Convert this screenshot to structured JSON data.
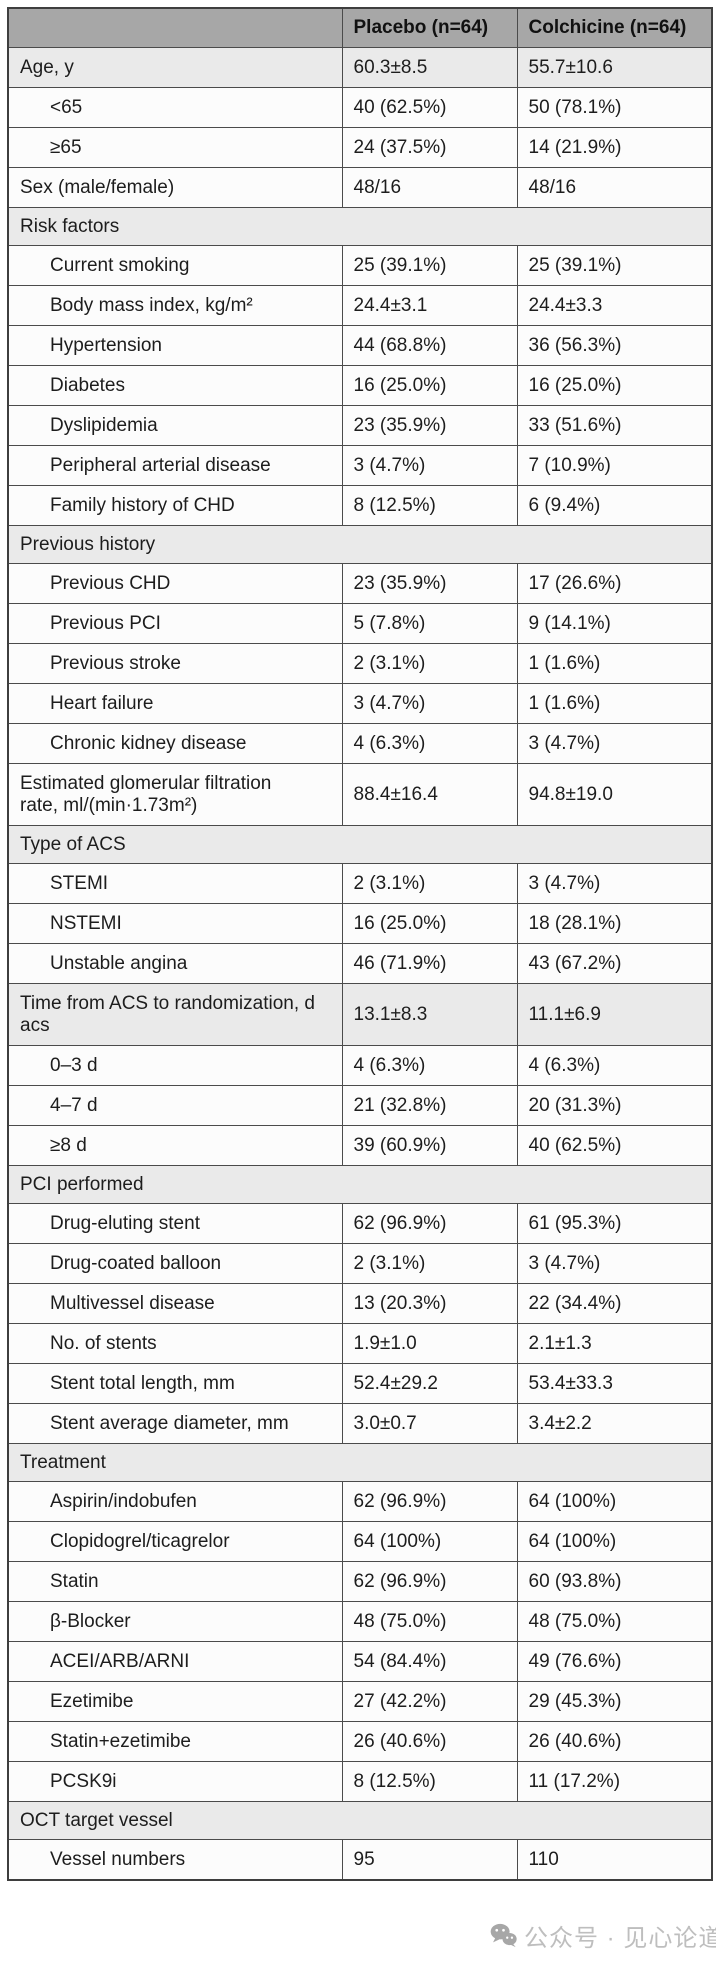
{
  "header": {
    "columns": [
      "",
      "Placebo (n=64)",
      "Colchicine (n=64)"
    ]
  },
  "table": {
    "rows": [
      {
        "type": "data",
        "shade": true,
        "indent": false,
        "label": "Age, y",
        "placebo": "60.3±8.5",
        "colchicine": "55.7±10.6"
      },
      {
        "type": "data",
        "shade": false,
        "indent": true,
        "label": "<65",
        "placebo": "40 (62.5%)",
        "colchicine": "50 (78.1%)"
      },
      {
        "type": "data",
        "shade": false,
        "indent": true,
        "label": "≥65",
        "placebo": "24 (37.5%)",
        "colchicine": "14 (21.9%)"
      },
      {
        "type": "data",
        "shade": false,
        "indent": false,
        "label": "Sex (male/female)",
        "placebo": "48/16",
        "colchicine": "48/16"
      },
      {
        "type": "section",
        "label": "Risk factors"
      },
      {
        "type": "data",
        "shade": false,
        "indent": true,
        "label": "Current smoking",
        "placebo": "25 (39.1%)",
        "colchicine": "25 (39.1%)"
      },
      {
        "type": "data",
        "shade": false,
        "indent": true,
        "label": "Body mass index, kg/m²",
        "placebo": "24.4±3.1",
        "colchicine": "24.4±3.3"
      },
      {
        "type": "data",
        "shade": false,
        "indent": true,
        "label": "Hypertension",
        "placebo": "44 (68.8%)",
        "colchicine": "36 (56.3%)"
      },
      {
        "type": "data",
        "shade": false,
        "indent": true,
        "label": "Diabetes",
        "placebo": "16 (25.0%)",
        "colchicine": "16 (25.0%)"
      },
      {
        "type": "data",
        "shade": false,
        "indent": true,
        "label": "Dyslipidemia",
        "placebo": "23 (35.9%)",
        "colchicine": "33 (51.6%)"
      },
      {
        "type": "data",
        "shade": false,
        "indent": true,
        "label": "Peripheral arterial disease",
        "placebo": "3 (4.7%)",
        "colchicine": "7 (10.9%)"
      },
      {
        "type": "data",
        "shade": false,
        "indent": true,
        "label": "Family history of CHD",
        "placebo": "8 (12.5%)",
        "colchicine": "6 (9.4%)"
      },
      {
        "type": "section",
        "label": "Previous history"
      },
      {
        "type": "data",
        "shade": false,
        "indent": true,
        "label": "Previous CHD",
        "placebo": "23 (35.9%)",
        "colchicine": "17 (26.6%)"
      },
      {
        "type": "data",
        "shade": false,
        "indent": true,
        "label": "Previous PCI",
        "placebo": "5 (7.8%)",
        "colchicine": "9 (14.1%)"
      },
      {
        "type": "data",
        "shade": false,
        "indent": true,
        "label": "Previous stroke",
        "placebo": "2 (3.1%)",
        "colchicine": "1 (1.6%)"
      },
      {
        "type": "data",
        "shade": false,
        "indent": true,
        "label": "Heart failure",
        "placebo": "3 (4.7%)",
        "colchicine": "1 (1.6%)"
      },
      {
        "type": "data",
        "shade": false,
        "indent": true,
        "label": "Chronic kidney disease",
        "placebo": "4 (6.3%)",
        "colchicine": "3 (4.7%)"
      },
      {
        "type": "data",
        "shade": false,
        "indent": false,
        "label": "Estimated glomerular filtration\nrate, ml/(min·1.73m²)",
        "placebo": "88.4±16.4",
        "colchicine": "94.8±19.0"
      },
      {
        "type": "section",
        "label": "Type of ACS"
      },
      {
        "type": "data",
        "shade": false,
        "indent": true,
        "label": "STEMI",
        "placebo": "2 (3.1%)",
        "colchicine": "3 (4.7%)"
      },
      {
        "type": "data",
        "shade": false,
        "indent": true,
        "label": "NSTEMI",
        "placebo": "16 (25.0%)",
        "colchicine": "18 (28.1%)"
      },
      {
        "type": "data",
        "shade": false,
        "indent": true,
        "label": "Unstable angina",
        "placebo": "46 (71.9%)",
        "colchicine": "43 (67.2%)"
      },
      {
        "type": "data",
        "shade": true,
        "indent": false,
        "label": "Time from ACS to randomization, d\nacs",
        "placebo": "13.1±8.3",
        "colchicine": "11.1±6.9"
      },
      {
        "type": "data",
        "shade": false,
        "indent": true,
        "label": "0–3 d",
        "placebo": "4 (6.3%)",
        "colchicine": "4 (6.3%)"
      },
      {
        "type": "data",
        "shade": false,
        "indent": true,
        "label": "4–7 d",
        "placebo": "21 (32.8%)",
        "colchicine": "20 (31.3%)"
      },
      {
        "type": "data",
        "shade": false,
        "indent": true,
        "label": "≥8 d",
        "placebo": "39 (60.9%)",
        "colchicine": "40 (62.5%)"
      },
      {
        "type": "section",
        "label": "PCI performed"
      },
      {
        "type": "data",
        "shade": false,
        "indent": true,
        "label": "Drug-eluting stent",
        "placebo": "62 (96.9%)",
        "colchicine": "61 (95.3%)"
      },
      {
        "type": "data",
        "shade": false,
        "indent": true,
        "label": "Drug-coated balloon",
        "placebo": "2 (3.1%)",
        "colchicine": "3 (4.7%)"
      },
      {
        "type": "data",
        "shade": false,
        "indent": true,
        "label": "Multivessel disease",
        "placebo": "13 (20.3%)",
        "colchicine": "22 (34.4%)"
      },
      {
        "type": "data",
        "shade": false,
        "indent": true,
        "label": "No. of stents",
        "placebo": "1.9±1.0",
        "colchicine": "2.1±1.3"
      },
      {
        "type": "data",
        "shade": false,
        "indent": true,
        "label": "Stent total length, mm",
        "placebo": "52.4±29.2",
        "colchicine": "53.4±33.3"
      },
      {
        "type": "data",
        "shade": false,
        "indent": true,
        "label": "Stent average diameter, mm",
        "placebo": "3.0±0.7",
        "colchicine": "3.4±2.2"
      },
      {
        "type": "section",
        "label": "Treatment"
      },
      {
        "type": "data",
        "shade": false,
        "indent": true,
        "label": "Aspirin/indobufen",
        "placebo": "62 (96.9%)",
        "colchicine": "64 (100%)"
      },
      {
        "type": "data",
        "shade": false,
        "indent": true,
        "label": "Clopidogrel/ticagrelor",
        "placebo": "64 (100%)",
        "colchicine": "64 (100%)"
      },
      {
        "type": "data",
        "shade": false,
        "indent": true,
        "label": "Statin",
        "placebo": "62 (96.9%)",
        "colchicine": "60 (93.8%)"
      },
      {
        "type": "data",
        "shade": false,
        "indent": true,
        "label": "β-Blocker",
        "placebo": "48 (75.0%)",
        "colchicine": "48 (75.0%)"
      },
      {
        "type": "data",
        "shade": false,
        "indent": true,
        "label": "ACEI/ARB/ARNI",
        "placebo": "54 (84.4%)",
        "colchicine": "49 (76.6%)"
      },
      {
        "type": "data",
        "shade": false,
        "indent": true,
        "label": "Ezetimibe",
        "placebo": "27 (42.2%)",
        "colchicine": "29 (45.3%)"
      },
      {
        "type": "data",
        "shade": false,
        "indent": true,
        "label": "Statin+ezetimibe",
        "placebo": "26 (40.6%)",
        "colchicine": "26 (40.6%)"
      },
      {
        "type": "data",
        "shade": false,
        "indent": true,
        "label": "PCSK9i",
        "placebo": "8 (12.5%)",
        "colchicine": "11 (17.2%)"
      },
      {
        "type": "section",
        "label": "OCT target vessel"
      },
      {
        "type": "data",
        "shade": false,
        "indent": true,
        "label": "Vessel numbers",
        "placebo": "95",
        "colchicine": "110"
      }
    ]
  },
  "watermark": {
    "icon": "wechat-logo",
    "text": "公众号 · 见心论道"
  },
  "colors": {
    "header_bg": "#a7a7a7",
    "shade_bg": "#eaeaea",
    "row_bg": "#fcfcfc",
    "border": "#4b4b4b",
    "text": "#1d1d1d",
    "watermark": "#b9b9b9"
  }
}
